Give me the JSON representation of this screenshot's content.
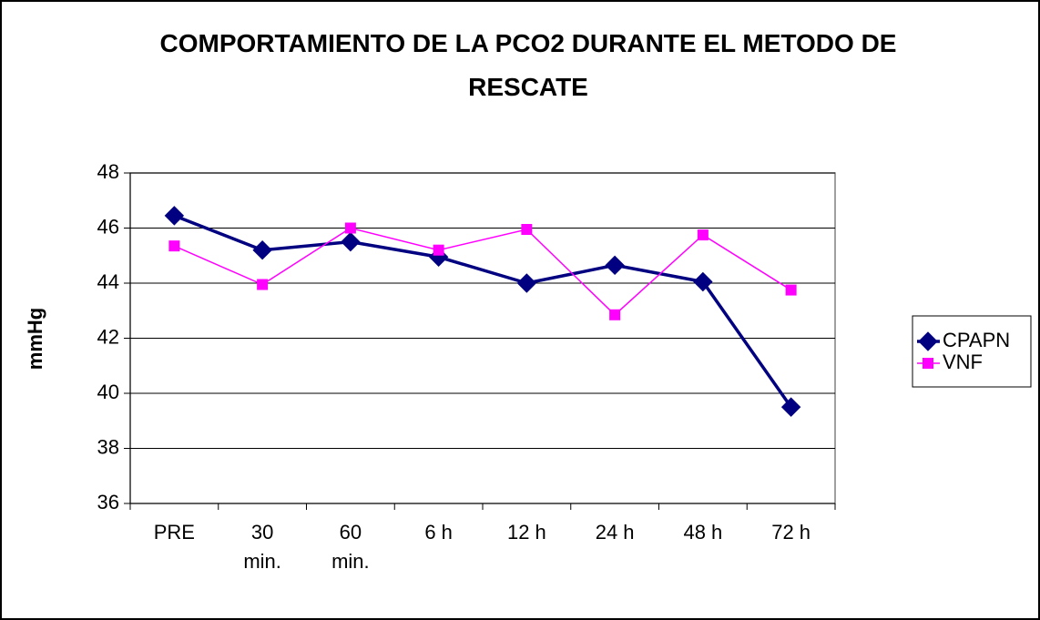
{
  "chart_data": {
    "type": "line",
    "title": "COMPORTAMIENTO DE LA PCO2 DURANTE EL METODO DE RESCATE",
    "y_label": "mmHg",
    "categories": [
      "PRE",
      "30 min.",
      "60 min.",
      "6 h",
      "12 h",
      "24 h",
      "48 h",
      "72 h"
    ],
    "series": [
      {
        "name": "CPAPN",
        "color": "#000080",
        "marker": "diamond",
        "values": [
          46.45,
          45.2,
          45.5,
          44.95,
          44.0,
          44.65,
          44.05,
          39.5
        ]
      },
      {
        "name": "VNF",
        "color": "#ff00ff",
        "marker": "square",
        "values": [
          45.35,
          43.95,
          46.0,
          45.2,
          45.95,
          42.85,
          45.75,
          43.75
        ]
      }
    ],
    "ylim": [
      36,
      48
    ],
    "yticks": [
      36,
      38,
      40,
      42,
      44,
      46,
      48
    ],
    "grid": true,
    "legend": "right"
  }
}
